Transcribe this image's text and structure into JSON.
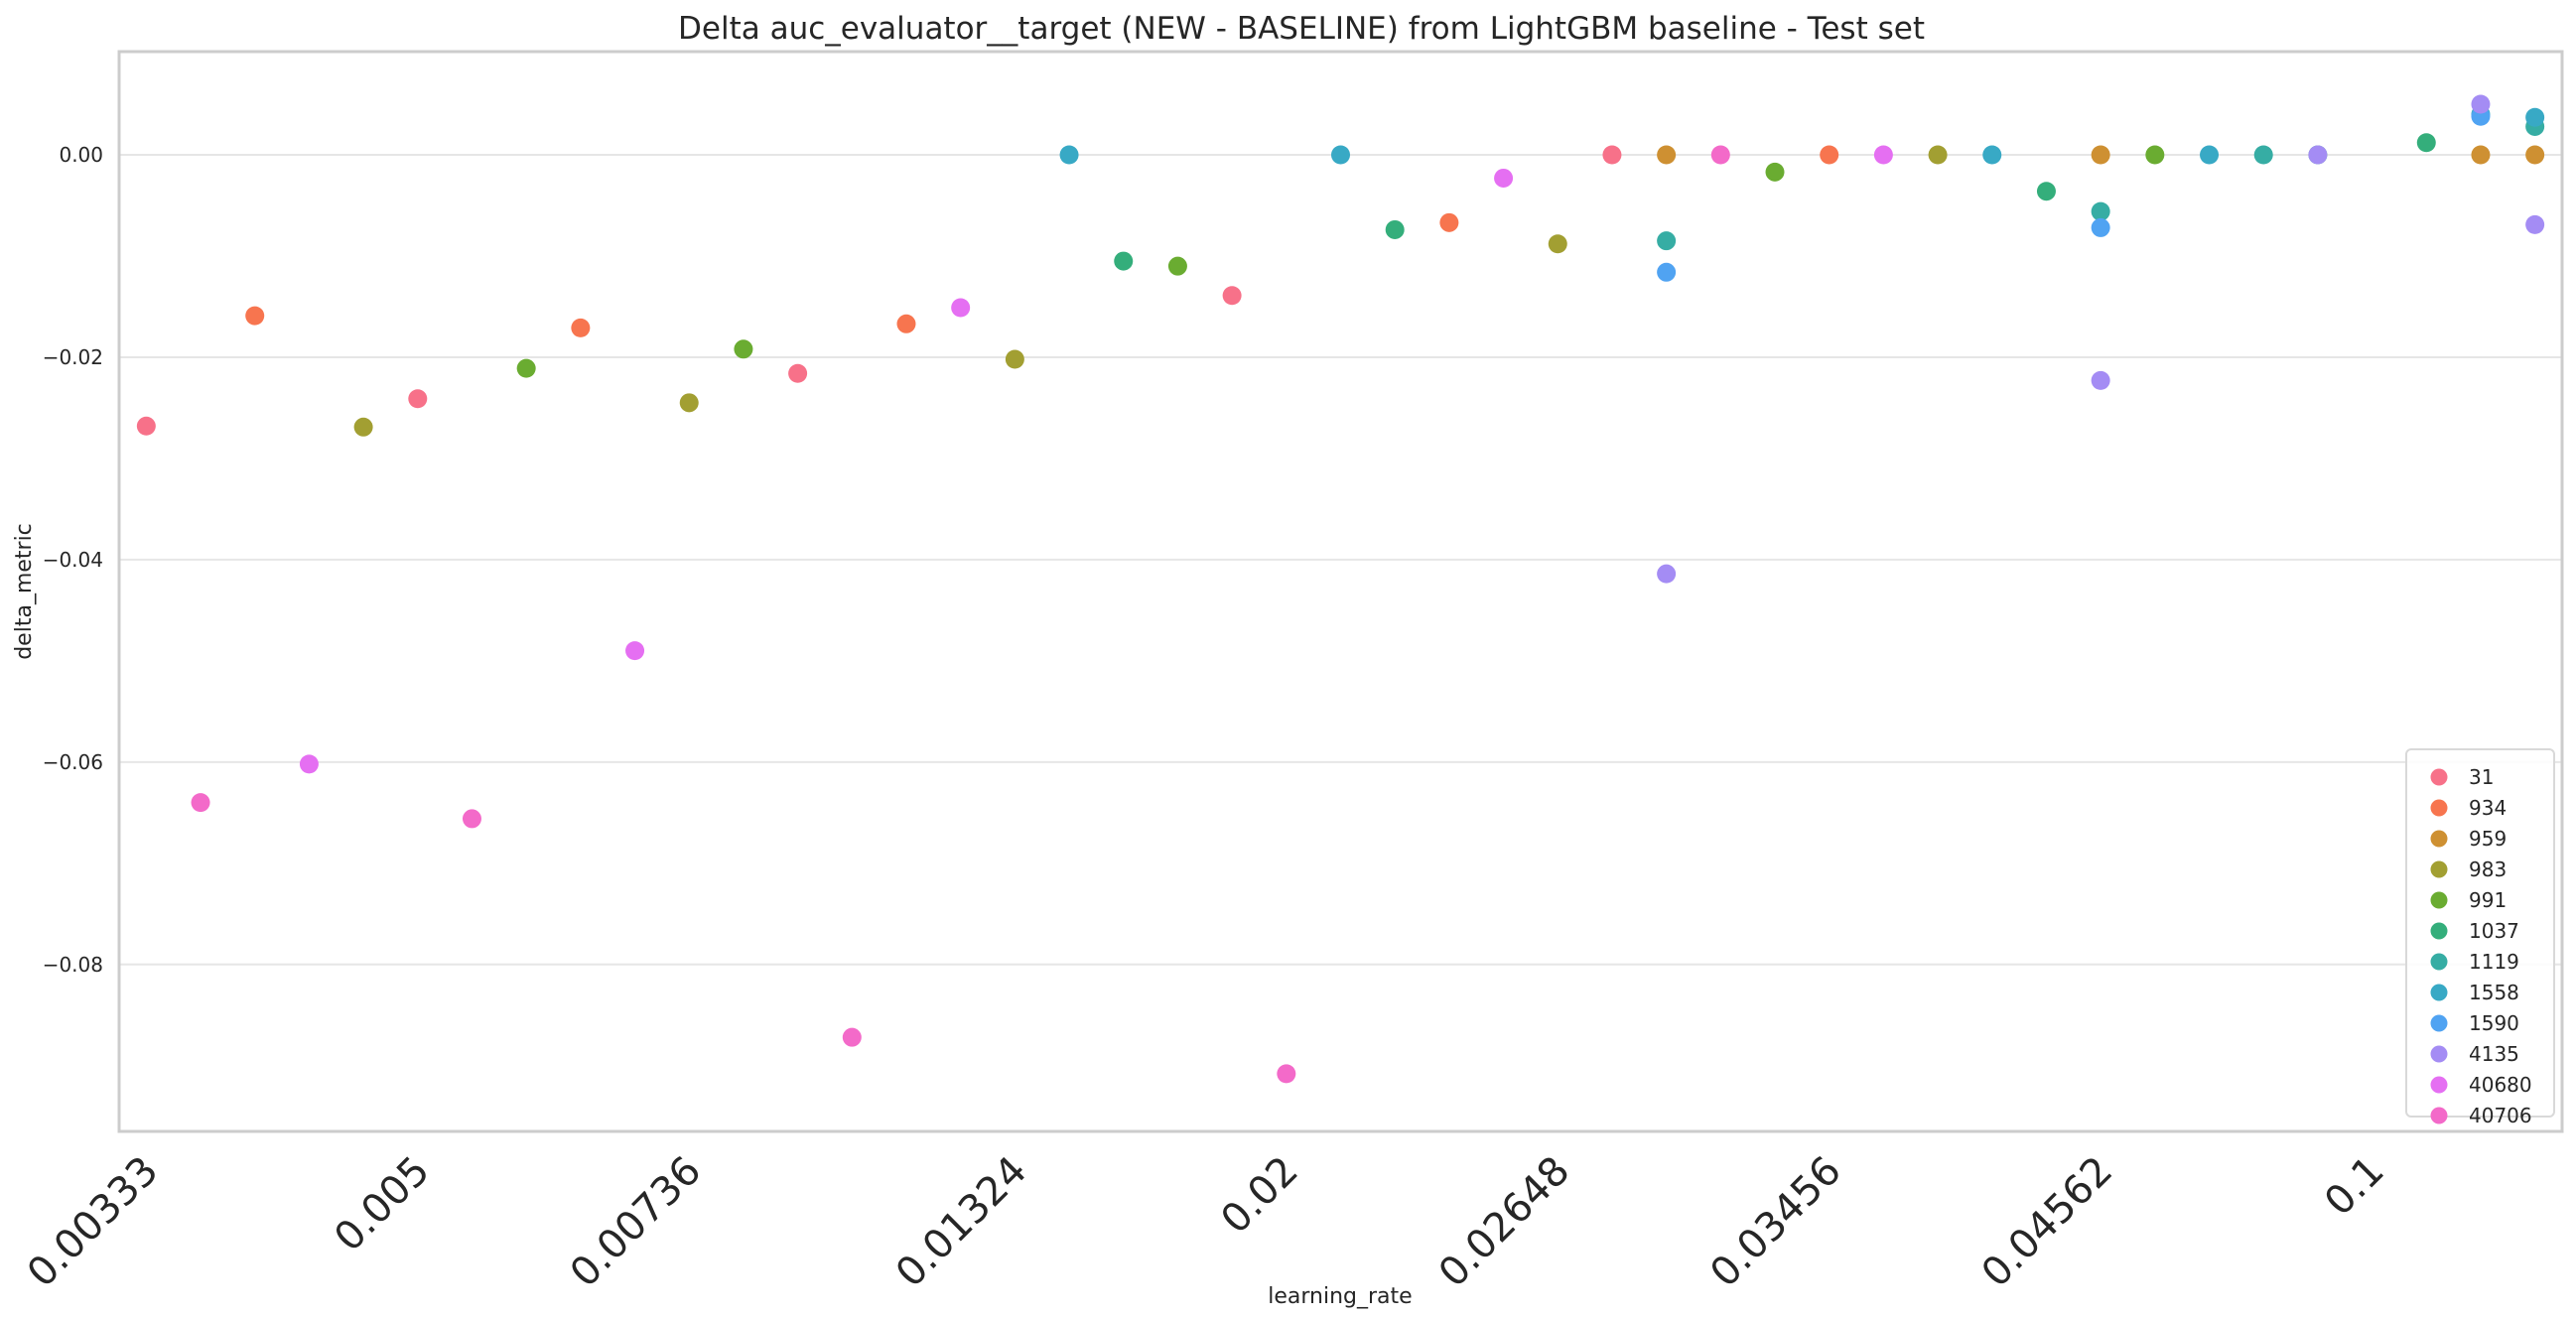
{
  "chart_data": {
    "type": "scatter",
    "title": "Delta auc_evaluator__target (NEW - BASELINE) from LightGBM baseline - Test set",
    "xlabel": "learning_rate",
    "ylabel": "delta_metric",
    "ylim": [
      -0.0965,
      0.0102
    ],
    "xlim": [
      -0.5,
      44.5
    ],
    "grid": "horizontal",
    "legend_position": "bottom-right",
    "yticks": [
      0.0,
      -0.02,
      -0.04,
      -0.06,
      -0.08
    ],
    "ytick_labels": [
      "0.00",
      "−0.02",
      "−0.04",
      "−0.06",
      "−0.08"
    ],
    "xticks": [
      0,
      5,
      10,
      16,
      21,
      26,
      31,
      36,
      41
    ],
    "xtick_labels": [
      "0.00333",
      "0.005",
      "0.00736",
      "0.01324",
      "0.02",
      "0.02648",
      "0.03456",
      "0.04562",
      "0.1"
    ],
    "series": [
      {
        "name": "31",
        "color": "#f77189",
        "points": [
          [
            0,
            -0.0268
          ],
          [
            5,
            -0.0241
          ],
          [
            12,
            -0.0216
          ],
          [
            20,
            -0.0139
          ],
          [
            27,
            0.0
          ]
        ]
      },
      {
        "name": "934",
        "color": "#f7754f",
        "points": [
          [
            2,
            -0.0159
          ],
          [
            8,
            -0.0171
          ],
          [
            14,
            -0.0167
          ],
          [
            24,
            -0.0067
          ],
          [
            31,
            0.0
          ]
        ]
      },
      {
        "name": "959",
        "color": "#ce9032",
        "points": [
          [
            28,
            0.0
          ],
          [
            36,
            0.0
          ],
          [
            43,
            0.0
          ],
          [
            44,
            0.0
          ]
        ]
      },
      {
        "name": "983",
        "color": "#a29f32",
        "points": [
          [
            4,
            -0.0269
          ],
          [
            10,
            -0.0245
          ],
          [
            16,
            -0.0202
          ],
          [
            26,
            -0.0088
          ],
          [
            33,
            0.0
          ]
        ]
      },
      {
        "name": "991",
        "color": "#6aac31",
        "points": [
          [
            7,
            -0.0211
          ],
          [
            11,
            -0.0192
          ],
          [
            19,
            -0.011
          ],
          [
            30,
            -0.0017
          ],
          [
            37,
            0.0
          ]
        ]
      },
      {
        "name": "1037",
        "color": "#34ae7b",
        "points": [
          [
            18,
            -0.0105
          ],
          [
            23,
            -0.0074
          ],
          [
            35,
            -0.0036
          ],
          [
            40,
            0.0
          ],
          [
            42,
            0.0012
          ]
        ]
      },
      {
        "name": "1119",
        "color": "#36ada4",
        "points": [
          [
            28,
            -0.0085
          ],
          [
            36,
            -0.0056
          ],
          [
            39,
            0.0
          ],
          [
            44,
            0.0028
          ]
        ]
      },
      {
        "name": "1558",
        "color": "#38a9c5",
        "points": [
          [
            17,
            0.0
          ],
          [
            22,
            0.0
          ],
          [
            34,
            0.0
          ],
          [
            38,
            0.0
          ],
          [
            43,
            0.004
          ],
          [
            44,
            0.0037
          ]
        ]
      },
      {
        "name": "1590",
        "color": "#50a3f2",
        "points": [
          [
            28,
            -0.0116
          ],
          [
            36,
            -0.0072
          ],
          [
            43,
            0.0038
          ]
        ]
      },
      {
        "name": "4135",
        "color": "#a48cf4",
        "points": [
          [
            28,
            -0.0414
          ],
          [
            36,
            -0.0223
          ],
          [
            40,
            0.0
          ],
          [
            43,
            0.005
          ],
          [
            44,
            -0.0069
          ]
        ]
      },
      {
        "name": "40680",
        "color": "#e56ff2",
        "points": [
          [
            3,
            -0.0602
          ],
          [
            9,
            -0.049
          ],
          [
            15,
            -0.0151
          ],
          [
            25,
            -0.0023
          ],
          [
            32,
            0.0
          ]
        ]
      },
      {
        "name": "40706",
        "color": "#f36ac9",
        "points": [
          [
            1,
            -0.064
          ],
          [
            6,
            -0.0656
          ],
          [
            13,
            -0.0872
          ],
          [
            21,
            -0.0908
          ],
          [
            29,
            0.0
          ]
        ]
      }
    ]
  }
}
